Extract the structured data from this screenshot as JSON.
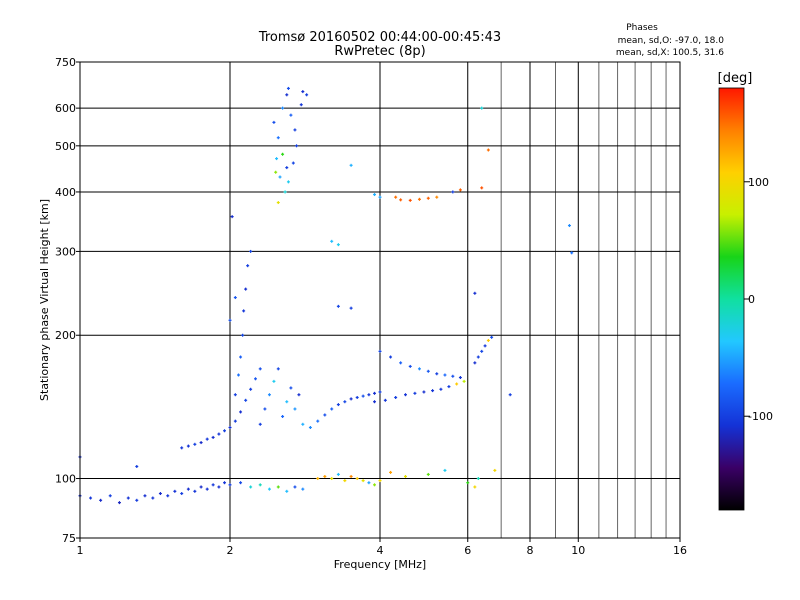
{
  "title": "Tromsø 20160502 00:44:00-00:45:43",
  "subtitle": "RwPretec (8p)",
  "phase_box": {
    "heading": "Phases",
    "line1": "mean, sd,O: -97.0, 18.0",
    "line2": "mean, sd,X: 100.5, 31.6"
  },
  "colorbar": {
    "unit_label": "[deg]",
    "tick_labels": [
      "100",
      "0",
      "-100"
    ],
    "tick_values": [
      100,
      0,
      -100
    ],
    "range": [
      -180,
      180
    ],
    "colors": [
      "#000000",
      "#3a0066",
      "#1432d6",
      "#1a6cff",
      "#22c8ff",
      "#10e0a0",
      "#18d418",
      "#c8f000",
      "#ffd000",
      "#ff8000",
      "#ff1800"
    ]
  },
  "chart_data": {
    "type": "scatter",
    "title": "Tromsø 20160502 00:44:00-00:45:43",
    "subtitle": "RwPretec (8p)",
    "xlabel": "Frequency [MHz]",
    "ylabel": "Stationary phase Virtual Height [km]",
    "x_scale": "log",
    "y_scale": "log",
    "xlim": [
      1,
      16
    ],
    "ylim": [
      75,
      750
    ],
    "x_ticks": [
      1,
      2,
      4,
      6,
      8,
      10,
      16
    ],
    "x_tick_labels": [
      "1",
      "2",
      "4",
      "6",
      "8",
      "10",
      "16"
    ],
    "y_ticks": [
      75,
      100,
      200,
      300,
      400,
      500,
      600,
      750
    ],
    "y_tick_labels": [
      "75",
      "100",
      "200",
      "300",
      "400",
      "500",
      "600",
      "750"
    ],
    "grid": true,
    "color_dimension": "phase [deg]",
    "series": [
      {
        "points": [
          [
            1.0,
            92
          ],
          [
            1.05,
            91
          ],
          [
            1.1,
            90
          ],
          [
            1.15,
            92
          ],
          [
            1.2,
            89
          ],
          [
            1.25,
            91
          ],
          [
            1.3,
            90
          ],
          [
            1.35,
            92
          ],
          [
            1.4,
            91
          ],
          [
            1.45,
            93
          ],
          [
            1.5,
            92
          ],
          [
            1.55,
            94
          ],
          [
            1.6,
            93
          ],
          [
            1.65,
            95
          ],
          [
            1.7,
            94
          ],
          [
            1.75,
            96
          ],
          [
            1.8,
            95
          ],
          [
            1.85,
            97
          ],
          [
            1.9,
            96
          ],
          [
            1.95,
            98
          ],
          [
            2.0,
            97
          ],
          [
            2.1,
            98
          ],
          [
            2.2,
            96
          ],
          [
            2.3,
            97
          ],
          [
            2.4,
            95
          ],
          [
            2.5,
            96
          ],
          [
            2.6,
            94
          ],
          [
            2.7,
            96
          ],
          [
            2.8,
            95
          ],
          [
            1.0,
            111
          ],
          [
            1.3,
            106
          ],
          [
            1.6,
            116
          ],
          [
            1.65,
            117
          ],
          [
            1.7,
            118
          ],
          [
            1.75,
            119
          ],
          [
            1.8,
            121
          ],
          [
            1.85,
            122
          ],
          [
            1.9,
            124
          ],
          [
            1.95,
            126
          ],
          [
            2.0,
            128
          ],
          [
            2.05,
            132
          ],
          [
            2.1,
            138
          ],
          [
            2.15,
            146
          ],
          [
            2.2,
            154
          ],
          [
            2.25,
            162
          ],
          [
            2.3,
            170
          ],
          [
            2.05,
            150
          ],
          [
            2.08,
            165
          ],
          [
            2.1,
            180
          ],
          [
            2.12,
            200
          ],
          [
            2.13,
            225
          ],
          [
            2.15,
            250
          ],
          [
            2.17,
            280
          ],
          [
            2.2,
            300
          ],
          [
            2.0,
            215
          ],
          [
            2.05,
            240
          ],
          [
            2.02,
            355
          ],
          [
            2.3,
            130
          ],
          [
            2.35,
            140
          ],
          [
            2.4,
            150
          ],
          [
            2.45,
            160
          ],
          [
            2.5,
            170
          ],
          [
            2.55,
            135
          ],
          [
            2.6,
            145
          ],
          [
            2.65,
            155
          ],
          [
            2.7,
            140
          ],
          [
            2.75,
            150
          ],
          [
            2.8,
            130
          ],
          [
            2.45,
            560
          ],
          [
            2.5,
            520
          ],
          [
            2.55,
            480
          ],
          [
            2.6,
            450
          ],
          [
            2.62,
            420
          ],
          [
            2.58,
            400
          ],
          [
            2.5,
            380
          ],
          [
            2.55,
            600
          ],
          [
            2.6,
            640
          ],
          [
            2.65,
            580
          ],
          [
            2.7,
            540
          ],
          [
            2.72,
            500
          ],
          [
            2.68,
            460
          ],
          [
            2.52,
            430
          ],
          [
            2.48,
            470
          ],
          [
            2.78,
            610
          ],
          [
            2.8,
            650
          ],
          [
            2.85,
            640
          ],
          [
            2.62,
            660
          ],
          [
            2.47,
            440
          ],
          [
            2.9,
            128
          ],
          [
            3.0,
            132
          ],
          [
            3.1,
            136
          ],
          [
            3.2,
            140
          ],
          [
            3.3,
            143
          ],
          [
            3.4,
            145
          ],
          [
            3.5,
            147
          ],
          [
            3.6,
            148
          ],
          [
            3.7,
            149
          ],
          [
            3.8,
            150
          ],
          [
            3.9,
            151
          ],
          [
            4.0,
            152
          ],
          [
            3.9,
            145
          ],
          [
            4.1,
            146
          ],
          [
            4.3,
            148
          ],
          [
            4.5,
            150
          ],
          [
            4.7,
            151
          ],
          [
            4.9,
            152
          ],
          [
            5.1,
            153
          ],
          [
            5.3,
            154
          ],
          [
            5.5,
            156
          ],
          [
            5.7,
            158
          ],
          [
            5.9,
            160
          ],
          [
            4.0,
            185
          ],
          [
            4.2,
            180
          ],
          [
            4.4,
            175
          ],
          [
            4.6,
            172
          ],
          [
            4.8,
            170
          ],
          [
            5.0,
            168
          ],
          [
            5.2,
            166
          ],
          [
            5.4,
            165
          ],
          [
            5.6,
            164
          ],
          [
            5.8,
            163
          ],
          [
            6.2,
            175
          ],
          [
            6.3,
            180
          ],
          [
            6.4,
            185
          ],
          [
            6.5,
            190
          ],
          [
            6.6,
            195
          ],
          [
            6.7,
            198
          ],
          [
            3.3,
            230
          ],
          [
            3.5,
            228
          ],
          [
            3.2,
            315
          ],
          [
            3.3,
            310
          ],
          [
            3.5,
            455
          ],
          [
            3.9,
            395
          ],
          [
            4.0,
            390
          ],
          [
            4.3,
            390
          ],
          [
            4.4,
            385
          ],
          [
            4.6,
            384
          ],
          [
            4.8,
            386
          ],
          [
            5.0,
            388
          ],
          [
            5.2,
            390
          ],
          [
            5.6,
            400
          ],
          [
            5.8,
            404
          ],
          [
            6.4,
            408
          ],
          [
            6.6,
            490
          ],
          [
            6.2,
            245
          ],
          [
            6.4,
            600
          ],
          [
            9.6,
            340
          ],
          [
            9.7,
            298
          ],
          [
            7.3,
            150
          ],
          [
            3.0,
            100
          ],
          [
            3.1,
            101
          ],
          [
            3.2,
            100
          ],
          [
            3.3,
            102
          ],
          [
            3.4,
            99
          ],
          [
            3.5,
            101
          ],
          [
            3.6,
            100
          ],
          [
            3.7,
            99
          ],
          [
            3.8,
            98
          ],
          [
            3.9,
            97
          ],
          [
            4.0,
            99
          ],
          [
            4.2,
            103
          ],
          [
            4.5,
            101
          ],
          [
            5.0,
            102
          ],
          [
            5.4,
            104
          ],
          [
            6.0,
            98
          ],
          [
            6.2,
            96
          ],
          [
            6.3,
            100
          ],
          [
            6.8,
            104
          ]
        ],
        "phases": [
          -110,
          -105,
          -112,
          -100,
          -115,
          -108,
          -102,
          -110,
          -106,
          -112,
          -104,
          -108,
          -100,
          -110,
          -106,
          -112,
          -108,
          -104,
          -110,
          -106,
          -100,
          -95,
          -20,
          -10,
          -35,
          50,
          -40,
          -90,
          -60,
          -110,
          -100,
          -105,
          -108,
          -100,
          -112,
          -104,
          -110,
          -106,
          -100,
          -108,
          -102,
          -110,
          -95,
          -100,
          -85,
          -90,
          -100,
          -70,
          -80,
          -95,
          -105,
          -110,
          -100,
          -95,
          -90,
          -85,
          -110,
          -100,
          -90,
          -60,
          -30,
          -95,
          -75,
          -40,
          -90,
          -55,
          -110,
          -45,
          -90,
          -70,
          40,
          -100,
          -30,
          -20,
          90,
          -60,
          -110,
          -80,
          -100,
          -100,
          -95,
          -50,
          -40,
          -105,
          -110,
          -100,
          -90,
          60,
          -60,
          -70,
          -90,
          -80,
          -100,
          -95,
          -110,
          -100,
          -90,
          -105,
          -110,
          -100,
          -110,
          -105,
          -100,
          -108,
          -102,
          -110,
          -106,
          -104,
          -100,
          110,
          70,
          -95,
          -100,
          -80,
          -90,
          -60,
          -85,
          -100,
          -75,
          -90,
          -105,
          -110,
          -100,
          -95,
          -105,
          110,
          -90,
          -95,
          -100,
          -40,
          -30,
          -45,
          -45,
          -50,
          150,
          155,
          160,
          150,
          155,
          140,
          -100,
          155,
          160,
          150,
          -110,
          -20,
          -60,
          -70,
          -100,
          120,
          130,
          90,
          -40,
          100,
          140,
          110,
          90,
          -50,
          60,
          100,
          130,
          90,
          50,
          -30,
          40,
          100,
          -10,
          100
        ]
      }
    ]
  }
}
